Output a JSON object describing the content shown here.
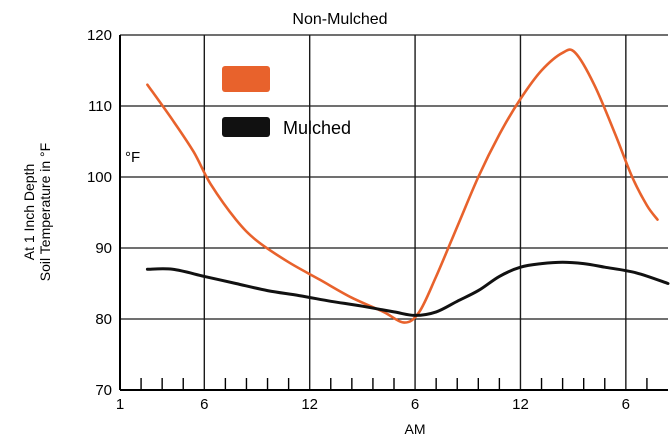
{
  "chart_data": {
    "type": "line",
    "title": "Non-Mulched",
    "xlabel": "AM",
    "ylabel_lines": [
      "At 1 Inch Depth",
      "Soil Temperature in °F"
    ],
    "unit_label": "°F",
    "ylim": [
      70,
      120
    ],
    "yticks": [
      70,
      80,
      90,
      100,
      110,
      120
    ],
    "xlim": [
      0,
      26
    ],
    "xticks": [
      {
        "x": 0,
        "label": "1"
      },
      {
        "x": 4,
        "label": "6"
      },
      {
        "x": 9,
        "label": "12"
      },
      {
        "x": 14,
        "label": "6"
      },
      {
        "x": 19,
        "label": "12"
      },
      {
        "x": 24,
        "label": "6"
      }
    ],
    "grid": true,
    "legend_position": "upper-left",
    "series": [
      {
        "name": "",
        "color": "#e8622c",
        "points": [
          [
            1.3,
            113
          ],
          [
            2.5,
            108
          ],
          [
            3.5,
            103.5
          ],
          [
            4.3,
            99
          ],
          [
            5.5,
            94
          ],
          [
            6.5,
            91
          ],
          [
            8,
            88
          ],
          [
            9.5,
            85.5
          ],
          [
            11,
            83
          ],
          [
            12.5,
            81
          ],
          [
            13.5,
            79.5
          ],
          [
            14.2,
            81
          ],
          [
            15,
            86
          ],
          [
            16,
            93
          ],
          [
            17,
            100
          ],
          [
            18,
            106
          ],
          [
            19,
            111
          ],
          [
            20,
            115
          ],
          [
            21,
            117.5
          ],
          [
            21.6,
            117.5
          ],
          [
            22.5,
            113
          ],
          [
            23.5,
            106
          ],
          [
            24.3,
            100
          ],
          [
            25,
            96
          ],
          [
            25.5,
            94
          ]
        ]
      },
      {
        "name": "Mulched",
        "color": "#111111",
        "points": [
          [
            1.3,
            87
          ],
          [
            2.5,
            87
          ],
          [
            4,
            86
          ],
          [
            5.5,
            85
          ],
          [
            7,
            84
          ],
          [
            8.5,
            83.3
          ],
          [
            10,
            82.5
          ],
          [
            11.5,
            81.8
          ],
          [
            13,
            81
          ],
          [
            14,
            80.5
          ],
          [
            15,
            81
          ],
          [
            16,
            82.5
          ],
          [
            17,
            84
          ],
          [
            18,
            86
          ],
          [
            19,
            87.3
          ],
          [
            20,
            87.8
          ],
          [
            21,
            88
          ],
          [
            22,
            87.8
          ],
          [
            23,
            87.3
          ],
          [
            24.5,
            86.5
          ],
          [
            26,
            85
          ]
        ]
      }
    ]
  }
}
